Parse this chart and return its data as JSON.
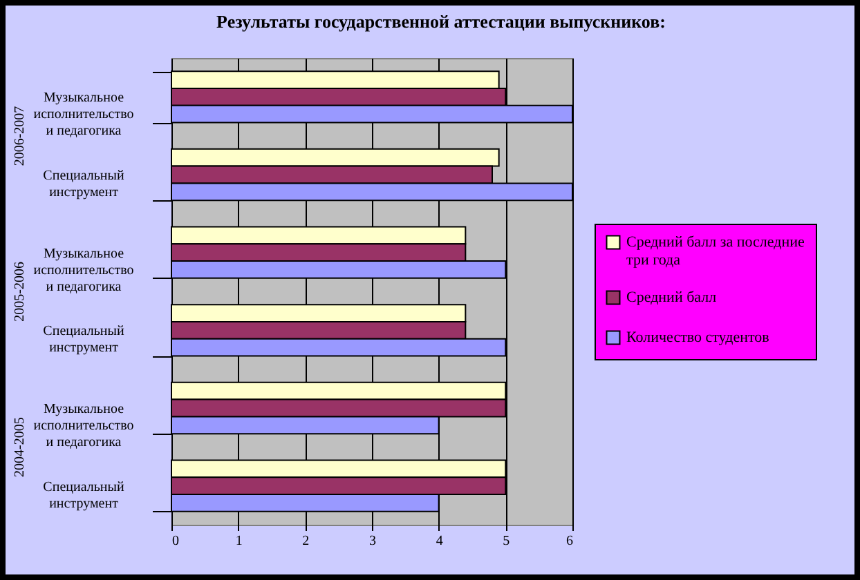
{
  "chart_data": {
    "type": "bar",
    "orientation": "horizontal",
    "title": "Результаты государственной аттестации выпускников:",
    "categories": [
      "Музыкальное исполнительство и педагогика",
      "Специальный инструмент",
      "Музыкальное исполнительство и педагогика",
      "Специальный инструмент",
      "Музыкальное исполнительство и педагогика",
      "Специальный инструмент"
    ],
    "annotations": [
      "2006-2007",
      "2005-2006",
      "2004-2005"
    ],
    "series": [
      {
        "name": "Средний балл за последние три года",
        "color": "#ffffcc",
        "values": [
          4.9,
          4.9,
          4.4,
          4.4,
          5,
          5
        ]
      },
      {
        "name": "Средний балл",
        "color": "#993366",
        "values": [
          5,
          4.8,
          4.4,
          4.4,
          5,
          5
        ]
      },
      {
        "name": "Количество студентов",
        "color": "#9999ff",
        "values": [
          6,
          6,
          5,
          5,
          4,
          4
        ]
      }
    ],
    "xlim": [
      0,
      6
    ],
    "xticks": [
      0,
      1,
      2,
      3,
      4,
      5,
      6
    ],
    "grid": "x",
    "legend": "right"
  }
}
